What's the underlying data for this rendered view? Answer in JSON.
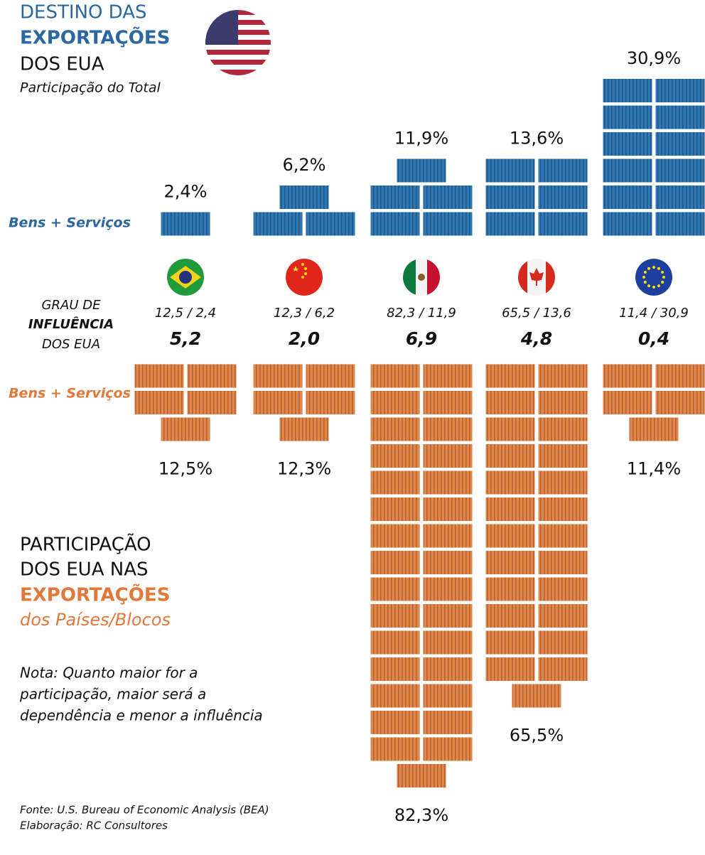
{
  "chart_data": {
    "type": "pictograph",
    "title_lines": [
      "DESTINO DAS",
      "EXPORTAÇÕES",
      "DOS EUA"
    ],
    "subtitle": "Participação do Total",
    "series": [
      {
        "name": "Bens + Serviços",
        "color": "#2b6ea6",
        "values": [
          2.4,
          6.2,
          11.9,
          13.6,
          30.9
        ],
        "value_labels": [
          "2,4%",
          "6,2%",
          "11,9%",
          "13,6%",
          "30,9%"
        ]
      },
      {
        "name": "Bens + Serviços",
        "color": "#dd7f45",
        "values": [
          12.5,
          12.3,
          82.3,
          65.5,
          11.4
        ],
        "value_labels": [
          "12,5%",
          "12,3%",
          "82,3%",
          "65,5%",
          "11,4%"
        ]
      }
    ],
    "influence": {
      "title_lines": [
        "GRAU DE",
        "INFLUÊNCIA",
        "DOS EUA"
      ],
      "ratio_labels": [
        "12,5 / 2,4",
        "12,3 / 6,2",
        "82,3 / 11,9",
        "65,5 / 13,6",
        "11,4 / 30,9"
      ],
      "values": [
        5.2,
        2.0,
        6.9,
        4.8,
        0.4
      ],
      "value_labels": [
        "5,2",
        "2,0",
        "6,9",
        "4,8",
        "0,4"
      ]
    },
    "lower_title_lines": [
      "PARTICIPAÇÃO",
      "DOS EUA NAS",
      "EXPORTAÇÕES",
      "dos Países/Blocos"
    ],
    "note_lines": [
      "Nota: Quanto maior for a",
      "participação, maior será a",
      "dependência e menor a influência"
    ],
    "source_lines": [
      "Fonte: U.S. Bureau of Economic Analysis (BEA)",
      "Elaboração: RC Consultores"
    ]
  }
}
